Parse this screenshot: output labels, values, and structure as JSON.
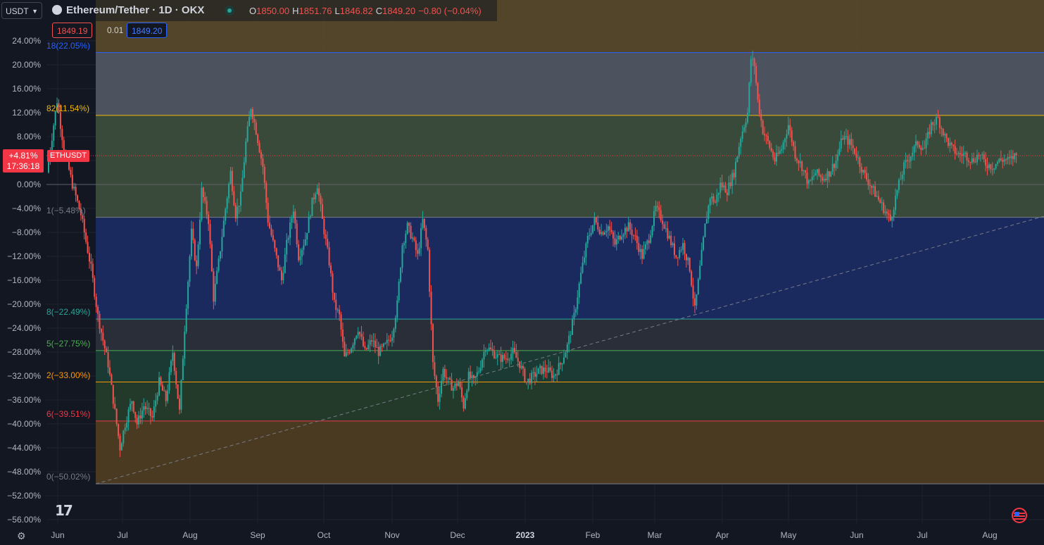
{
  "header": {
    "currency": "USDT",
    "title": "Ethereum/Tether · 1D · OKX",
    "ohlc": [
      {
        "k": "O",
        "v": "1850.00"
      },
      {
        "k": "H",
        "v": "1851.76"
      },
      {
        "k": "L",
        "v": "1846.82"
      },
      {
        "k": "C",
        "v": "1849.20"
      },
      {
        "k": "",
        "v": "−0.80 (−0.04%)"
      }
    ],
    "bid": "1849.19",
    "spread": "0.01",
    "ask": "1849.20"
  },
  "current_price_tag": {
    "percent": "+4.81%",
    "countdown": "17:36:18",
    "symbol": "ETHUSDT"
  },
  "colors": {
    "up": "#26a69a",
    "down": "#ef5350",
    "background": "#131722"
  },
  "icons": {
    "settings": "gear-icon",
    "logo": "tradingview-logo-icon",
    "flag": "us-flag-icon"
  },
  "chart_data": {
    "type": "candlestick",
    "y_unit": "percent",
    "ylim": [
      -58,
      26
    ],
    "yticks": [
      "24.00%",
      "20.00%",
      "16.00%",
      "12.00%",
      "8.00%",
      "4.00%",
      "0.00%",
      "−4.00%",
      "−8.00%",
      "−12.00%",
      "−16.00%",
      "−20.00%",
      "−24.00%",
      "−28.00%",
      "−32.00%",
      "−36.00%",
      "−40.00%",
      "−44.00%",
      "−48.00%",
      "−52.00%",
      "−56.00%"
    ],
    "xticks": [
      {
        "label": "Jun",
        "bold": false
      },
      {
        "label": "Jul",
        "bold": false
      },
      {
        "label": "Aug",
        "bold": false
      },
      {
        "label": "Sep",
        "bold": false
      },
      {
        "label": "Oct",
        "bold": false
      },
      {
        "label": "Nov",
        "bold": false
      },
      {
        "label": "Dec",
        "bold": false
      },
      {
        "label": "2023",
        "bold": true
      },
      {
        "label": "Feb",
        "bold": false
      },
      {
        "label": "Mar",
        "bold": false
      },
      {
        "label": "Apr",
        "bold": false
      },
      {
        "label": "May",
        "bold": false
      },
      {
        "label": "Jun",
        "bold": false
      },
      {
        "label": "Jul",
        "bold": false
      },
      {
        "label": "Aug",
        "bold": false
      }
    ],
    "fib_levels": [
      {
        "label": "18(22.05%)",
        "value": 22.05,
        "line": "#2962ff",
        "fill": "#4c525e",
        "text": "#2962ff"
      },
      {
        "label": "82(11.54%)",
        "value": 11.54,
        "line": "#f0b90b",
        "fill": "#3a4a3a",
        "text": "#f0b90b"
      },
      {
        "label": "1(−5.48%)",
        "value": -5.48,
        "line": "#787b86",
        "fill": "#1b2a5e",
        "text": "#787b86"
      },
      {
        "label": "8(−22.49%)",
        "value": -22.49,
        "line": "#26a69a",
        "fill": "#2a2e39",
        "text": "#26a69a"
      },
      {
        "label": "5(−27.75%)",
        "value": -27.75,
        "line": "#4caf50",
        "fill": "#1a3a33",
        "text": "#4caf50"
      },
      {
        "label": "2(−33.00%)",
        "value": -33.0,
        "line": "#ff9800",
        "fill": "#233a2a",
        "text": "#ff9800"
      },
      {
        "label": "6(−39.51%)",
        "value": -39.51,
        "line": "#f23645",
        "fill": "#4a3a22",
        "text": "#f23645"
      },
      {
        "label": "0(−50.02%)",
        "value": -50.02,
        "line": "#787b86",
        "fill": "#4a2030",
        "text": "#787b86"
      }
    ],
    "current_value": 4.81,
    "path": [
      [
        0,
        2
      ],
      [
        3,
        8
      ],
      [
        6,
        14
      ],
      [
        10,
        6
      ],
      [
        15,
        0
      ],
      [
        20,
        -5
      ],
      [
        26,
        -14
      ],
      [
        30,
        -22
      ],
      [
        36,
        -30
      ],
      [
        40,
        -38
      ],
      [
        43,
        -44
      ],
      [
        46,
        -40
      ],
      [
        50,
        -36
      ],
      [
        53,
        -40
      ],
      [
        57,
        -37
      ],
      [
        62,
        -39
      ],
      [
        66,
        -33
      ],
      [
        70,
        -36
      ],
      [
        74,
        -28
      ],
      [
        78,
        -38
      ],
      [
        81,
        -24
      ],
      [
        85,
        -8
      ],
      [
        88,
        -14
      ],
      [
        91,
        -1
      ],
      [
        95,
        -6
      ],
      [
        98,
        -19
      ],
      [
        101,
        -13
      ],
      [
        105,
        -4
      ],
      [
        108,
        2
      ],
      [
        111,
        -5
      ],
      [
        114,
        -2
      ],
      [
        117,
        7
      ],
      [
        120,
        13
      ],
      [
        123,
        9
      ],
      [
        127,
        3
      ],
      [
        130,
        -6
      ],
      [
        134,
        -11
      ],
      [
        138,
        -16
      ],
      [
        141,
        -10
      ],
      [
        145,
        -4
      ],
      [
        148,
        -12
      ],
      [
        152,
        -9
      ],
      [
        156,
        -3
      ],
      [
        159,
        0
      ],
      [
        162,
        -6
      ],
      [
        166,
        -13
      ],
      [
        169,
        -20
      ],
      [
        172,
        -22
      ],
      [
        175,
        -29
      ],
      [
        179,
        -27
      ],
      [
        183,
        -24
      ],
      [
        187,
        -28
      ],
      [
        191,
        -26
      ],
      [
        195,
        -28
      ],
      [
        199,
        -27
      ],
      [
        203,
        -25
      ],
      [
        206,
        -20
      ],
      [
        209,
        -10
      ],
      [
        212,
        -7
      ],
      [
        215,
        -9
      ],
      [
        218,
        -12
      ],
      [
        221,
        -6
      ],
      [
        224,
        -11
      ],
      [
        227,
        -30
      ],
      [
        230,
        -36
      ],
      [
        233,
        -31
      ],
      [
        236,
        -33
      ],
      [
        239,
        -34
      ],
      [
        242,
        -33
      ],
      [
        245,
        -37
      ],
      [
        248,
        -32
      ],
      [
        251,
        -33
      ],
      [
        254,
        -31
      ],
      [
        258,
        -27
      ],
      [
        262,
        -28
      ],
      [
        266,
        -29
      ],
      [
        270,
        -29
      ],
      [
        274,
        -28
      ],
      [
        278,
        -30
      ],
      [
        282,
        -33
      ],
      [
        286,
        -32
      ],
      [
        290,
        -31
      ],
      [
        294,
        -31
      ],
      [
        298,
        -32
      ],
      [
        302,
        -30
      ],
      [
        306,
        -27
      ],
      [
        310,
        -22
      ],
      [
        314,
        -15
      ],
      [
        318,
        -9
      ],
      [
        322,
        -6
      ],
      [
        326,
        -8
      ],
      [
        330,
        -7
      ],
      [
        334,
        -10
      ],
      [
        338,
        -8
      ],
      [
        342,
        -7
      ],
      [
        346,
        -9
      ],
      [
        350,
        -12
      ],
      [
        354,
        -9
      ],
      [
        358,
        -4
      ],
      [
        362,
        -6
      ],
      [
        366,
        -9
      ],
      [
        370,
        -12
      ],
      [
        374,
        -10
      ],
      [
        378,
        -14
      ],
      [
        381,
        -21
      ],
      [
        384,
        -14
      ],
      [
        387,
        -7
      ],
      [
        390,
        -2
      ],
      [
        393,
        -3
      ],
      [
        396,
        0
      ],
      [
        400,
        -1
      ],
      [
        404,
        2
      ],
      [
        408,
        8
      ],
      [
        412,
        12
      ],
      [
        414,
        21
      ],
      [
        416,
        20
      ],
      [
        418,
        14
      ],
      [
        421,
        9
      ],
      [
        424,
        7
      ],
      [
        428,
        4
      ],
      [
        432,
        6
      ],
      [
        436,
        10
      ],
      [
        440,
        5
      ],
      [
        444,
        3
      ],
      [
        448,
        0
      ],
      [
        452,
        2
      ],
      [
        456,
        1
      ],
      [
        460,
        2
      ],
      [
        464,
        4
      ],
      [
        468,
        8
      ],
      [
        472,
        7
      ],
      [
        476,
        5
      ],
      [
        480,
        2
      ],
      [
        484,
        0
      ],
      [
        488,
        -2
      ],
      [
        492,
        -4
      ],
      [
        496,
        -6
      ],
      [
        500,
        -1
      ],
      [
        504,
        3
      ],
      [
        508,
        5
      ],
      [
        512,
        7
      ],
      [
        516,
        6
      ],
      [
        520,
        10
      ],
      [
        524,
        11
      ],
      [
        528,
        8
      ],
      [
        532,
        6
      ],
      [
        536,
        5
      ],
      [
        540,
        5
      ],
      [
        544,
        4
      ],
      [
        548,
        5
      ],
      [
        552,
        3.5
      ],
      [
        556,
        3
      ],
      [
        560,
        4
      ],
      [
        563,
        4.2
      ],
      [
        566,
        4.0
      ],
      [
        569,
        4.8
      ]
    ]
  }
}
